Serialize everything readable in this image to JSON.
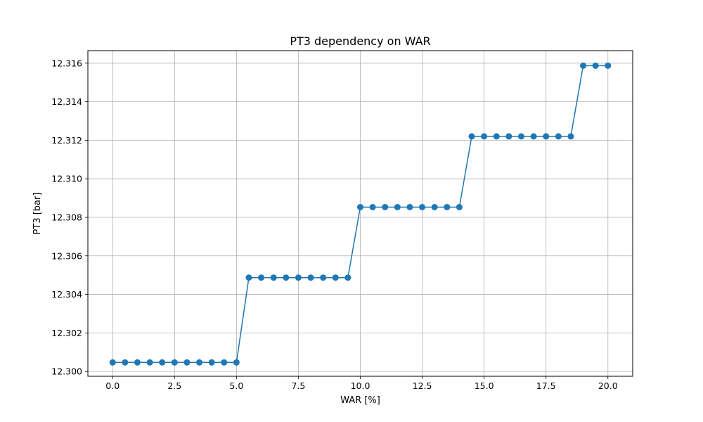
{
  "chart_data": {
    "type": "line",
    "title": "PT3 dependency on WAR",
    "xlabel": "WAR [%]",
    "ylabel": "PT3 [bar]",
    "xlim": [
      -1.0,
      21.0
    ],
    "ylim": [
      12.29975,
      12.31665
    ],
    "grid": true,
    "line_color": "#1f77b4",
    "marker": "circle",
    "x_ticks": [
      0.0,
      2.5,
      5.0,
      7.5,
      10.0,
      12.5,
      15.0,
      17.5,
      20.0
    ],
    "x_tick_labels": [
      "0.0",
      "2.5",
      "5.0",
      "7.5",
      "10.0",
      "12.5",
      "15.0",
      "17.5",
      "20.0"
    ],
    "y_ticks": [
      12.3,
      12.302,
      12.304,
      12.306,
      12.308,
      12.31,
      12.312,
      12.314,
      12.316
    ],
    "y_tick_labels": [
      "12.300",
      "12.302",
      "12.304",
      "12.306",
      "12.308",
      "12.310",
      "12.312",
      "12.314",
      "12.316"
    ],
    "series": [
      {
        "x": [
          0.0,
          0.5,
          1.0,
          1.5,
          2.0,
          2.5,
          3.0,
          3.5,
          4.0,
          4.5,
          5.0,
          5.5,
          6.0,
          6.5,
          7.0,
          7.5,
          8.0,
          8.5,
          9.0,
          9.5,
          10.0,
          10.5,
          11.0,
          11.5,
          12.0,
          12.5,
          13.0,
          13.5,
          14.0,
          14.5,
          15.0,
          15.5,
          16.0,
          16.5,
          17.0,
          17.5,
          18.0,
          18.5,
          19.0,
          19.5,
          20.0
        ],
        "values": [
          12.30047,
          12.30047,
          12.30047,
          12.30047,
          12.30047,
          12.30047,
          12.30047,
          12.30047,
          12.30047,
          12.30047,
          12.30047,
          12.30487,
          12.30487,
          12.30487,
          12.30487,
          12.30487,
          12.30487,
          12.30487,
          12.30487,
          12.30487,
          12.30853,
          12.30853,
          12.30853,
          12.30853,
          12.30853,
          12.30853,
          12.30853,
          12.30853,
          12.30853,
          12.3122,
          12.3122,
          12.3122,
          12.3122,
          12.3122,
          12.3122,
          12.3122,
          12.3122,
          12.3122,
          12.31587,
          12.31587,
          12.31587
        ]
      }
    ]
  }
}
